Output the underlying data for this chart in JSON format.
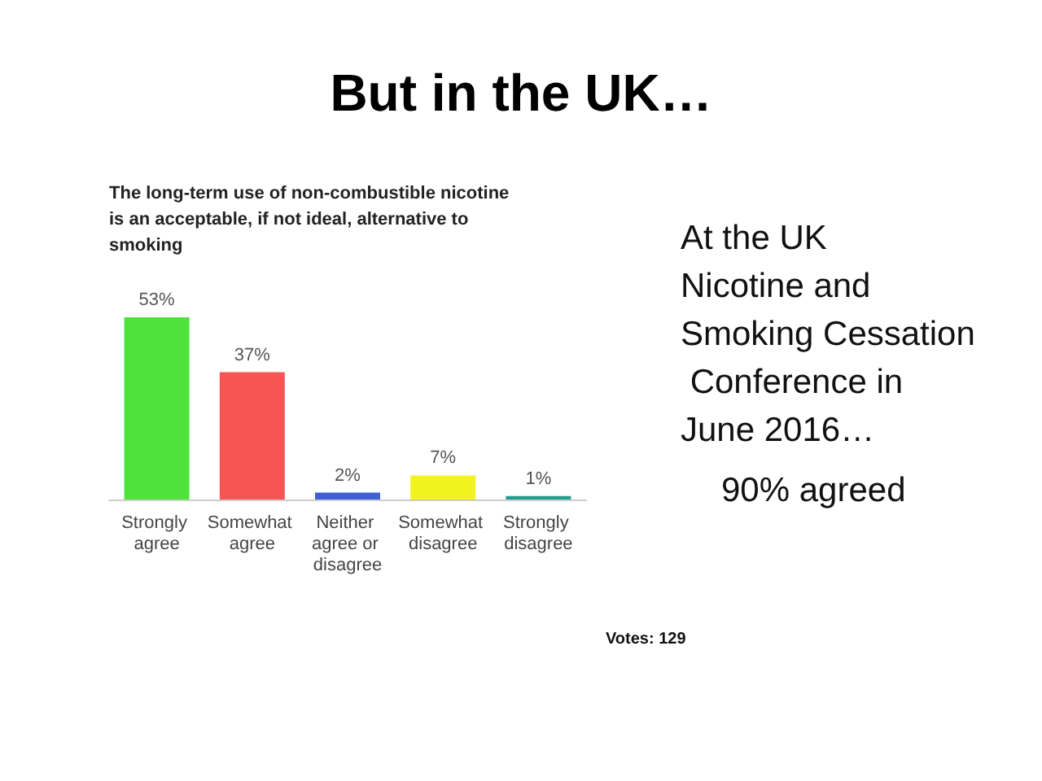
{
  "chart_data": {
    "type": "bar",
    "title": "But in the UK…",
    "subtitle": "The long-term use of non-combustible nicotine is an acceptable, if not ideal, alternative to smoking",
    "categories": [
      "Strongly agree",
      "Somewhat agree",
      "Neither agree or disagree",
      "Somewhat disagree",
      "Strongly disagree"
    ],
    "values": [
      53,
      37,
      2,
      7,
      1
    ],
    "value_labels": [
      "53%",
      "37%",
      "2%",
      "7%",
      "1%"
    ],
    "colors": [
      "#4ee23a",
      "#f75555",
      "#3f5fd8",
      "#f2f21e",
      "#1f9e8e"
    ],
    "annotations": [
      "At the UK Nicotine and Smoking Cessation Conference in June 2016…",
      "90% agreed",
      "Votes: 129"
    ]
  }
}
